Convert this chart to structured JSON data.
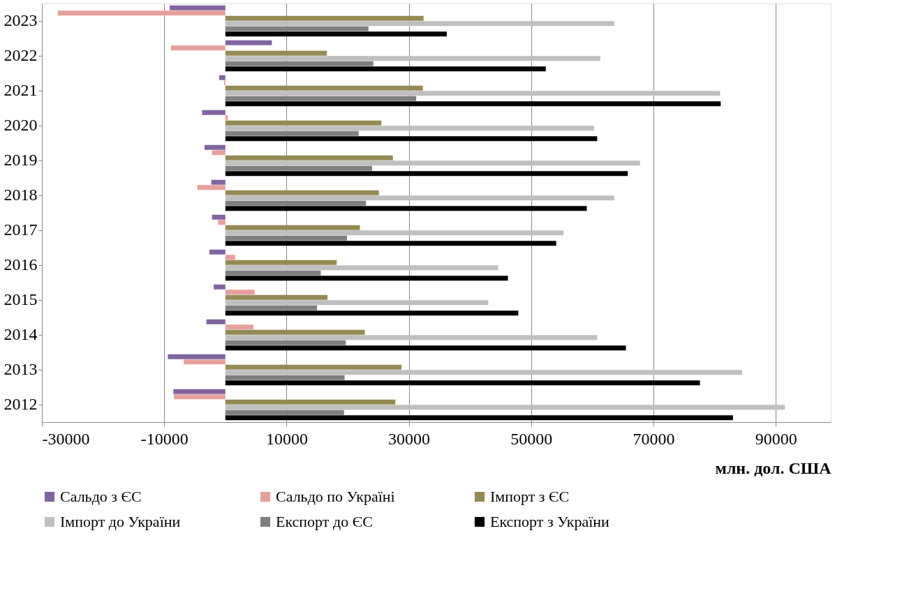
{
  "chart_data": {
    "type": "bar",
    "orientation": "horizontal",
    "xlabel": "млн. дол. США",
    "categories": [
      "2023",
      "2022",
      "2021",
      "2020",
      "2019",
      "2018",
      "2017",
      "2016",
      "2015",
      "2014",
      "2013",
      "2012"
    ],
    "series": [
      {
        "name": "Сальдо з ЄС",
        "color": "#8064a2",
        "values": [
          -9100,
          7600,
          -1000,
          -3800,
          -3400,
          -2300,
          -2200,
          -2600,
          -1900,
          -3100,
          -9400,
          -8500
        ]
      },
      {
        "name": "Сальдо по Україні",
        "color": "#e6a09c",
        "values": [
          -27400,
          -8900,
          -200,
          400,
          -2200,
          -4600,
          -1200,
          1600,
          4800,
          4600,
          -6800,
          -8400
        ]
      },
      {
        "name": "Імпорт з ЄС",
        "color": "#948a54",
        "values": [
          32400,
          16600,
          32300,
          25500,
          27400,
          25100,
          22000,
          18200,
          16700,
          22800,
          28800,
          27800
        ]
      },
      {
        "name": "Імпорт до України",
        "color": "#bfbfbf",
        "values": [
          63600,
          61300,
          80900,
          60300,
          67800,
          63600,
          55300,
          44600,
          43000,
          60800,
          84500,
          91500
        ]
      },
      {
        "name": "Експорт до ЄС",
        "color": "#7f7f7f",
        "values": [
          23400,
          24200,
          31200,
          21800,
          24000,
          23000,
          19900,
          15600,
          15000,
          19700,
          19500,
          19400
        ]
      },
      {
        "name": "Експорт з України",
        "color": "#000000",
        "values": [
          36200,
          52400,
          81000,
          60800,
          65800,
          59100,
          54100,
          46200,
          47900,
          65500,
          77600,
          83000
        ]
      }
    ],
    "xlim": [
      -30000,
      99000
    ],
    "xticks": [
      -30000,
      -10000,
      10000,
      30000,
      50000,
      70000,
      90000
    ],
    "grid": "x",
    "legend": "bottom"
  }
}
